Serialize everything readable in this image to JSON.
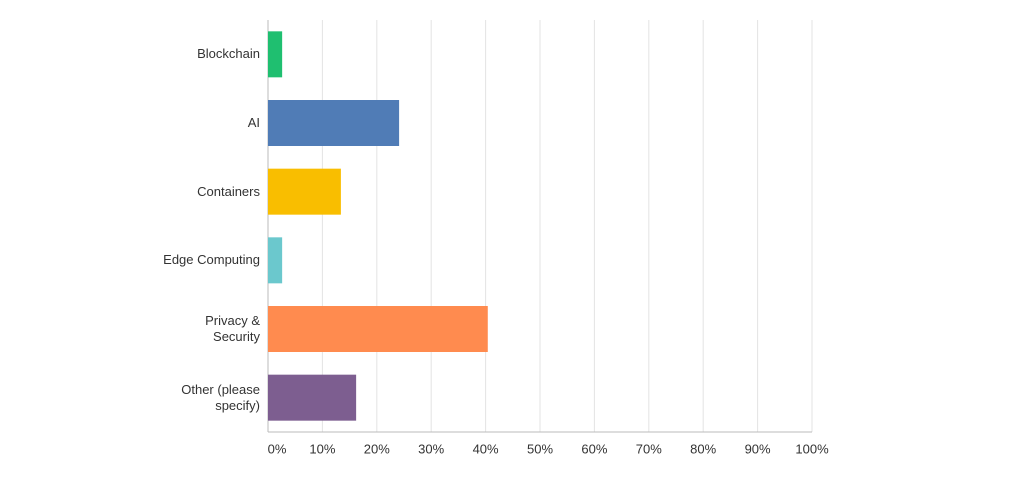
{
  "chart_data": {
    "type": "bar",
    "orientation": "horizontal",
    "categories": [
      "Blockchain",
      "AI",
      "Containers",
      "Edge Computing",
      "Privacy & Security",
      "Other (please specify)"
    ],
    "values": [
      2.6,
      24.1,
      13.4,
      2.6,
      40.4,
      16.2
    ],
    "colors": [
      "#1fbf70",
      "#507cb6",
      "#f9be00",
      "#6bc8cd",
      "#ff8b4f",
      "#7d5e90"
    ],
    "xlim": [
      0,
      100
    ],
    "xticks": [
      {
        "value": 0,
        "label": "0%"
      },
      {
        "value": 10,
        "label": "10%"
      },
      {
        "value": 20,
        "label": "20%"
      },
      {
        "value": 30,
        "label": "30%"
      },
      {
        "value": 40,
        "label": "40%"
      },
      {
        "value": 50,
        "label": "50%"
      },
      {
        "value": 60,
        "label": "60%"
      },
      {
        "value": 70,
        "label": "70%"
      },
      {
        "value": 80,
        "label": "80%"
      },
      {
        "value": 90,
        "label": "90%"
      },
      {
        "value": 100,
        "label": "100%"
      }
    ],
    "grid": true
  }
}
